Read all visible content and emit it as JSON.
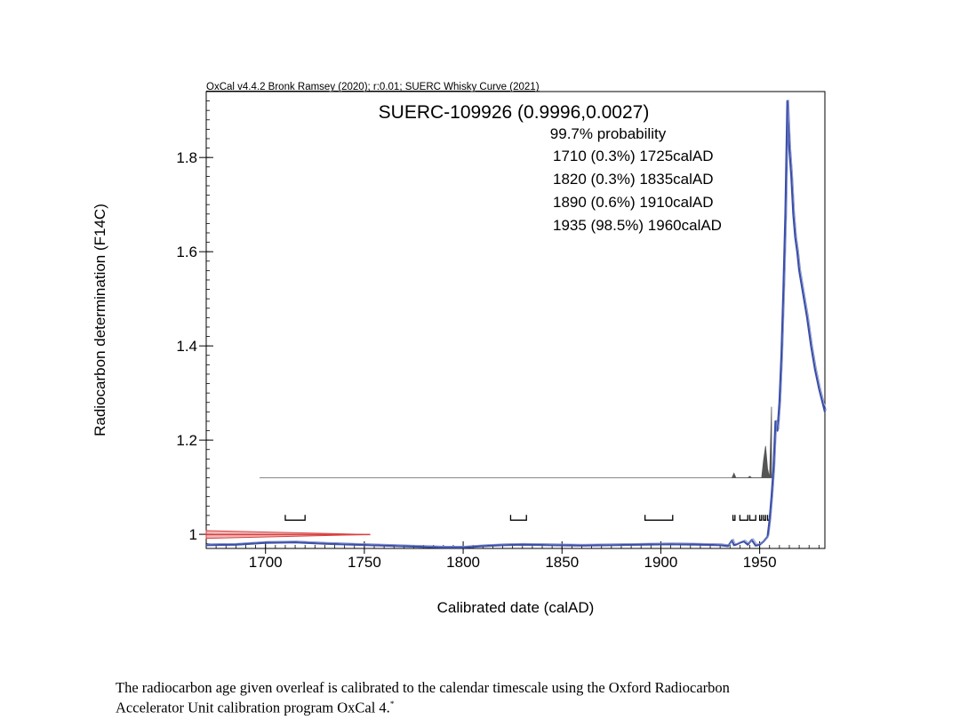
{
  "chart_data": {
    "type": "line",
    "header": "OxCal v4.4.2 Bronk Ramsey (2020); r:0.01; SUERC Whisky Curve (2021)",
    "title": "SUERC-109926 (0.9996,0.0027)",
    "probability_label": "99.7% probability",
    "ranges": [
      {
        "text": "1710 (0.3%) 1725calAD",
        "from": 1710,
        "to": 1725
      },
      {
        "text": "1820 (0.3%) 1835calAD",
        "from": 1820,
        "to": 1835
      },
      {
        "text": "1890 (0.6%) 1910calAD",
        "from": 1890,
        "to": 1910
      },
      {
        "text": "1935 (98.5%) 1960calAD",
        "from": 1935,
        "to": 1960
      }
    ],
    "bracket_markers": [
      {
        "from": 1710,
        "to": 1720
      },
      {
        "from": 1824,
        "to": 1832
      },
      {
        "from": 1892,
        "to": 1906
      },
      {
        "from": 1936.5,
        "to": 1937.5
      },
      {
        "from": 1940,
        "to": 1944
      },
      {
        "from": 1945,
        "to": 1948
      },
      {
        "from": 1950,
        "to": 1951
      },
      {
        "from": 1952,
        "to": 1953
      },
      {
        "from": 1954,
        "to": 1955
      }
    ],
    "xlabel": "Calibrated date (calAD)",
    "ylabel": "Radiocarbon determination (F14C)",
    "xlim": [
      1670,
      1983
    ],
    "ylim": [
      0.97,
      1.94
    ],
    "xticks": [
      1700,
      1750,
      1800,
      1850,
      1900,
      1950
    ],
    "yticks": [
      1,
      1.2,
      1.4,
      1.6,
      1.8
    ],
    "measurement": {
      "value": 0.9996,
      "error": 0.0027
    },
    "series": [
      {
        "name": "SUERC Whisky Curve (2021)",
        "color": "#3b4fa8",
        "x": [
          1670,
          1685,
          1700,
          1715,
          1730,
          1745,
          1760,
          1775,
          1790,
          1800,
          1810,
          1820,
          1830,
          1845,
          1860,
          1875,
          1890,
          1905,
          1920,
          1930,
          1934,
          1936,
          1937,
          1938,
          1940,
          1942,
          1944,
          1946,
          1948,
          1950,
          1952,
          1954,
          1955,
          1956,
          1957,
          1958,
          1959,
          1960,
          1961,
          1962,
          1963,
          1964,
          1965,
          1966,
          1967,
          1968,
          1969,
          1970,
          1972,
          1974,
          1976,
          1978,
          1980,
          1983
        ],
        "y": [
          0.977,
          0.978,
          0.982,
          0.983,
          0.98,
          0.978,
          0.976,
          0.974,
          0.972,
          0.972,
          0.975,
          0.977,
          0.978,
          0.977,
          0.976,
          0.977,
          0.978,
          0.979,
          0.978,
          0.977,
          0.975,
          0.987,
          0.977,
          0.978,
          0.982,
          0.985,
          0.978,
          0.988,
          0.976,
          0.978,
          0.985,
          0.995,
          1.03,
          1.08,
          1.14,
          1.24,
          1.22,
          1.28,
          1.38,
          1.52,
          1.68,
          1.92,
          1.82,
          1.76,
          1.68,
          1.63,
          1.6,
          1.56,
          1.51,
          1.46,
          1.4,
          1.35,
          1.31,
          1.26
        ]
      },
      {
        "name": "Sample measurement",
        "color": "#d94040",
        "x": [
          1670,
          1753
        ],
        "y": [
          0.9996,
          0.9996
        ]
      }
    ],
    "posterior": {
      "color": "#555555",
      "x": [
        1936,
        1937,
        1938,
        1944,
        1945,
        1946,
        1951,
        1952,
        1953,
        1954,
        1955,
        1956
      ],
      "density": [
        0,
        0.03,
        0,
        0,
        0.01,
        0,
        0,
        0.12,
        0.21,
        0.06,
        0,
        0.47
      ]
    },
    "grid": false,
    "legend": "none"
  },
  "caption": {
    "line1": "The radiocarbon age given overleaf is calibrated to the calendar timescale using the Oxford Radiocarbon",
    "line2": "Accelerator Unit calibration program OxCal 4.",
    "footnote_mark": "*"
  }
}
